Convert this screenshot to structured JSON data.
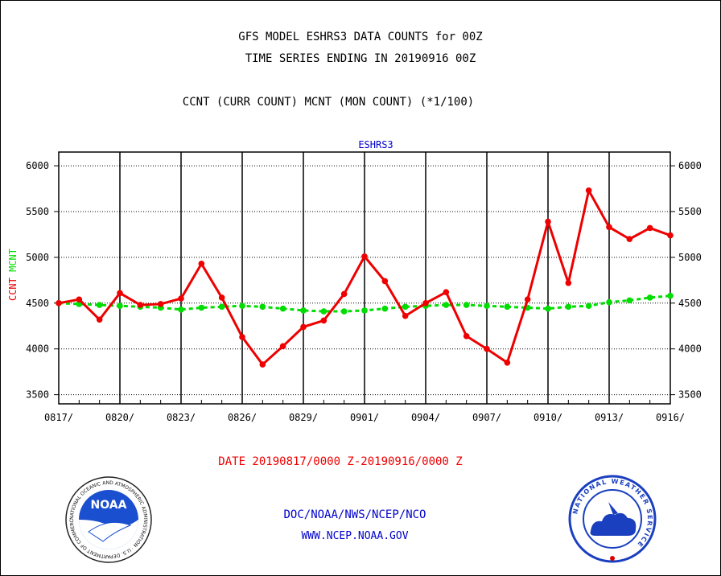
{
  "titles": {
    "line1": "GFS MODEL ESHRS3 DATA COUNTS for 00Z",
    "line2": "TIME SERIES ENDING IN 20190916 00Z",
    "line3": "CCNT (CURR COUNT) MCNT (MON COUNT) (*1/100)"
  },
  "footer": {
    "date_range": "DATE 20190817/0000 Z-20190916/0000 Z",
    "org": "DOC/NOAA/NWS/NCEP/NCO",
    "url": "WWW.NCEP.NOAA.GOV"
  },
  "logos": {
    "noaa_text": "NOAA",
    "noaa_ring": "NATIONAL OCEANIC AND ATMOSPHERIC ADMINISTRATION · U.S. DEPARTMENT OF COMMERCE ·",
    "nws_ring": "NATIONAL WEATHER SERVICE"
  },
  "colors": {
    "ccnt": "#ee0000",
    "mcnt": "#00dd00",
    "label_blue": "#0000cc",
    "footer_red": "#ee0000"
  },
  "chart_data": {
    "type": "line",
    "title": "ESHRS3",
    "ylabel_left": [
      "CCNT",
      "MCNT"
    ],
    "ylim": [
      3400,
      6150
    ],
    "yticks": [
      3500,
      4000,
      4500,
      5000,
      5500,
      6000
    ],
    "xlim": [
      "2019-08-17",
      "2019-09-16"
    ],
    "xtick_labels": [
      "0817/",
      "0820/",
      "0823/",
      "0826/",
      "0829/",
      "0901/",
      "0904/",
      "0907/",
      "0910/",
      "0913/",
      "0916/"
    ],
    "x": [
      "2019-08-17",
      "2019-08-18",
      "2019-08-19",
      "2019-08-20",
      "2019-08-21",
      "2019-08-22",
      "2019-08-23",
      "2019-08-24",
      "2019-08-25",
      "2019-08-26",
      "2019-08-27",
      "2019-08-28",
      "2019-08-29",
      "2019-08-30",
      "2019-08-31",
      "2019-09-01",
      "2019-09-02",
      "2019-09-03",
      "2019-09-04",
      "2019-09-05",
      "2019-09-06",
      "2019-09-07",
      "2019-09-08",
      "2019-09-09",
      "2019-09-10",
      "2019-09-11",
      "2019-09-12",
      "2019-09-13",
      "2019-09-14",
      "2019-09-15",
      "2019-09-16"
    ],
    "grid": true,
    "series": [
      {
        "name": "CCNT",
        "color": "#ee0000",
        "style": "solid",
        "values": [
          4500,
          4540,
          4320,
          4610,
          4480,
          4490,
          4550,
          4930,
          4560,
          4130,
          3830,
          4030,
          4240,
          4310,
          4600,
          5010,
          4740,
          4360,
          4500,
          4620,
          4140,
          4000,
          3850,
          4540,
          5390,
          4720,
          5730,
          5330,
          5200,
          5320,
          5240
        ]
      },
      {
        "name": "MCNT",
        "color": "#00dd00",
        "style": "dashed",
        "values": [
          4500,
          4490,
          4480,
          4470,
          4460,
          4450,
          4430,
          4450,
          4460,
          4470,
          4460,
          4440,
          4420,
          4410,
          4410,
          4420,
          4440,
          4460,
          4470,
          4480,
          4480,
          4470,
          4460,
          4450,
          4440,
          4460,
          4470,
          4510,
          4530,
          4560,
          4580
        ]
      }
    ]
  }
}
